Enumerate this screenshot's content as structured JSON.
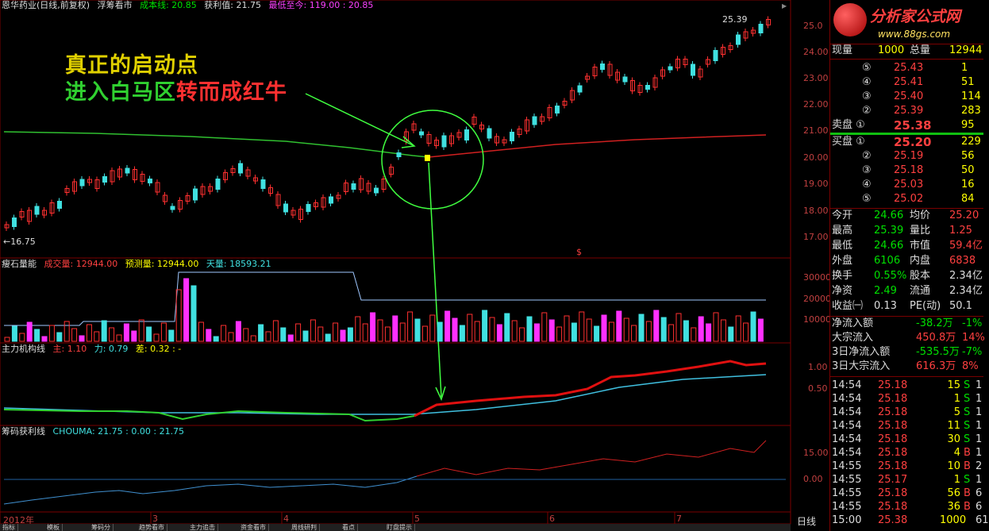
{
  "header": {
    "stock": "恩华药业(日线,前复权)",
    "indicator": "浮筹看市",
    "cost_label": "成本线: 20.85",
    "profit_label": "获利值: 21.75",
    "low_to_now": "最低至今: 119.00 : 20.85"
  },
  "price_axis": [
    "25.0",
    "24.00",
    "23.00",
    "22.00",
    "21.00",
    "20.00",
    "19.00",
    "18.00",
    "17.00"
  ],
  "chart_marks": {
    "high": "25.39",
    "low": "←16.75",
    "dollar": "$"
  },
  "annotation": {
    "line1": "真正的启动点",
    "line2a": "进入白马区",
    "line2b": "转而成红牛"
  },
  "volume_panel": {
    "name": "瘦石量能",
    "vol": "成交量: 12944.00",
    "forecast": "预测量: 12944.00",
    "sky": "天量: 18593.21",
    "axis": [
      "30000",
      "20000",
      "10000"
    ]
  },
  "main_panel": {
    "name": "主力机构线",
    "main": "主: 1.10",
    "force": "力: 0.79",
    "diff": "差: 0.32 : -",
    "axis": [
      "1.00",
      "0.50"
    ]
  },
  "chip_panel": {
    "name": "筹码获利线",
    "chouma": "CHOUMA: 21.75 : 0.00 : 21.75",
    "axis": [
      "15.00",
      "0.00"
    ]
  },
  "date_axis": [
    "2012年",
    "3",
    "4",
    "5",
    "6",
    "7"
  ],
  "tabs": [
    "指标",
    "模板",
    "筹码分",
    "趋势看市",
    "主力追击",
    "资金看市",
    "周线研判",
    "看点",
    "盯盘提示"
  ],
  "period": "日线",
  "logo": {
    "title": "分析家公式网",
    "url": "www.88gs.com"
  },
  "quote": {
    "now_label": "现量",
    "now_val": "1000",
    "total_label": "总量",
    "total_val": "12944",
    "asks": [
      {
        "n": "⑤",
        "p": "25.43",
        "v": "1"
      },
      {
        "n": "④",
        "p": "25.41",
        "v": "51"
      },
      {
        "n": "③",
        "p": "25.40",
        "v": "114"
      },
      {
        "n": "②",
        "p": "25.39",
        "v": "283"
      },
      {
        "n": "卖盘 ①",
        "p": "25.38",
        "v": "95"
      }
    ],
    "bids": [
      {
        "n": "买盘 ①",
        "p": "25.20",
        "v": "229"
      },
      {
        "n": "②",
        "p": "25.19",
        "v": "56"
      },
      {
        "n": "③",
        "p": "25.18",
        "v": "50"
      },
      {
        "n": "④",
        "p": "25.03",
        "v": "16"
      },
      {
        "n": "⑤",
        "p": "25.02",
        "v": "84"
      }
    ],
    "stats": [
      [
        "今开",
        "24.66",
        "均价",
        "25.20"
      ],
      [
        "最高",
        "25.39",
        "量比",
        "1.25"
      ],
      [
        "最低",
        "24.66",
        "市值",
        "59.4亿"
      ],
      [
        "外盘",
        "6106",
        "内盘",
        "6838"
      ],
      [
        "换手",
        "0.55%",
        "股本",
        "2.34亿"
      ],
      [
        "净资",
        "2.49",
        "流通",
        "2.34亿"
      ],
      [
        "收益㈠",
        "0.13",
        "PE(动)",
        "50.1"
      ]
    ],
    "flows": [
      [
        "净流入额",
        "-38.2万",
        "-1%"
      ],
      [
        "大宗流入",
        "450.8万",
        "14%"
      ],
      [
        "3日净流入额",
        "-535.5万",
        "-7%"
      ],
      [
        "3日大宗流入",
        "616.3万",
        "8%"
      ]
    ],
    "ticks": [
      [
        "14:54",
        "25.18",
        "15",
        "S",
        "1"
      ],
      [
        "14:54",
        "25.18",
        "1",
        "S",
        "1"
      ],
      [
        "14:54",
        "25.18",
        "5",
        "S",
        "1"
      ],
      [
        "14:54",
        "25.18",
        "11",
        "S",
        "1"
      ],
      [
        "14:54",
        "25.18",
        "30",
        "S",
        "1"
      ],
      [
        "14:54",
        "25.18",
        "4",
        "B",
        "1"
      ],
      [
        "14:55",
        "25.18",
        "10",
        "B",
        "2"
      ],
      [
        "14:55",
        "25.17",
        "1",
        "S",
        "1"
      ],
      [
        "14:55",
        "25.18",
        "56",
        "B",
        "6"
      ],
      [
        "14:55",
        "25.18",
        "36",
        "B",
        "6"
      ],
      [
        "15:00",
        "25.38",
        "1000",
        "",
        "61"
      ]
    ]
  }
}
